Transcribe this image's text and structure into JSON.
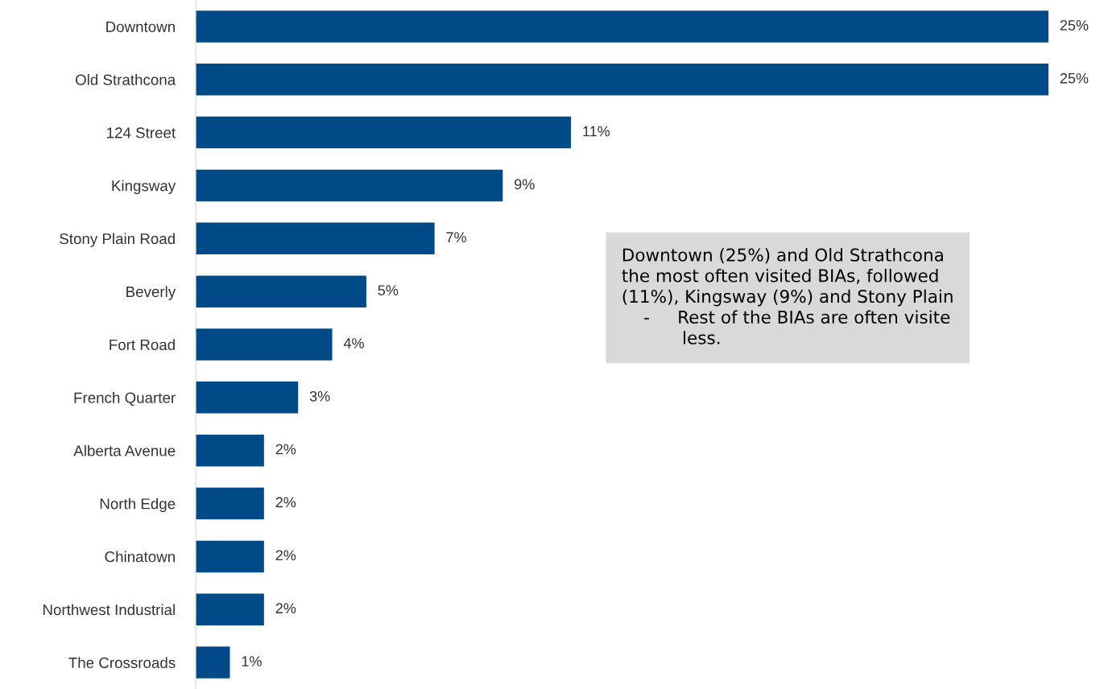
{
  "chart_data": {
    "type": "bar",
    "orientation": "horizontal",
    "categories": [
      "Downtown",
      "Old Strathcona",
      "124 Street",
      "Kingsway",
      "Stony Plain Road",
      "Beverly",
      "Fort Road",
      "French Quarter",
      "Alberta Avenue",
      "North Edge",
      "Chinatown",
      "Northwest Industrial",
      "The Crossroads"
    ],
    "values": [
      25,
      25,
      11,
      9,
      7,
      5,
      4,
      3,
      2,
      2,
      2,
      2,
      1
    ],
    "value_labels": [
      "25%",
      "25%",
      "11%",
      "9%",
      "7%",
      "5%",
      "4%",
      "3%",
      "2%",
      "2%",
      "2%",
      "2%",
      "1%"
    ],
    "color": "#004b87",
    "annotations": [
      "Downtown (25%) and Old Strathcona\nthe most often visited BIAs, followed\n(11%), Kingsway (9%) and Stony Plain\n    -     Rest of the BIAs are often visite\n           less."
    ],
    "grid": false,
    "legend": false
  }
}
